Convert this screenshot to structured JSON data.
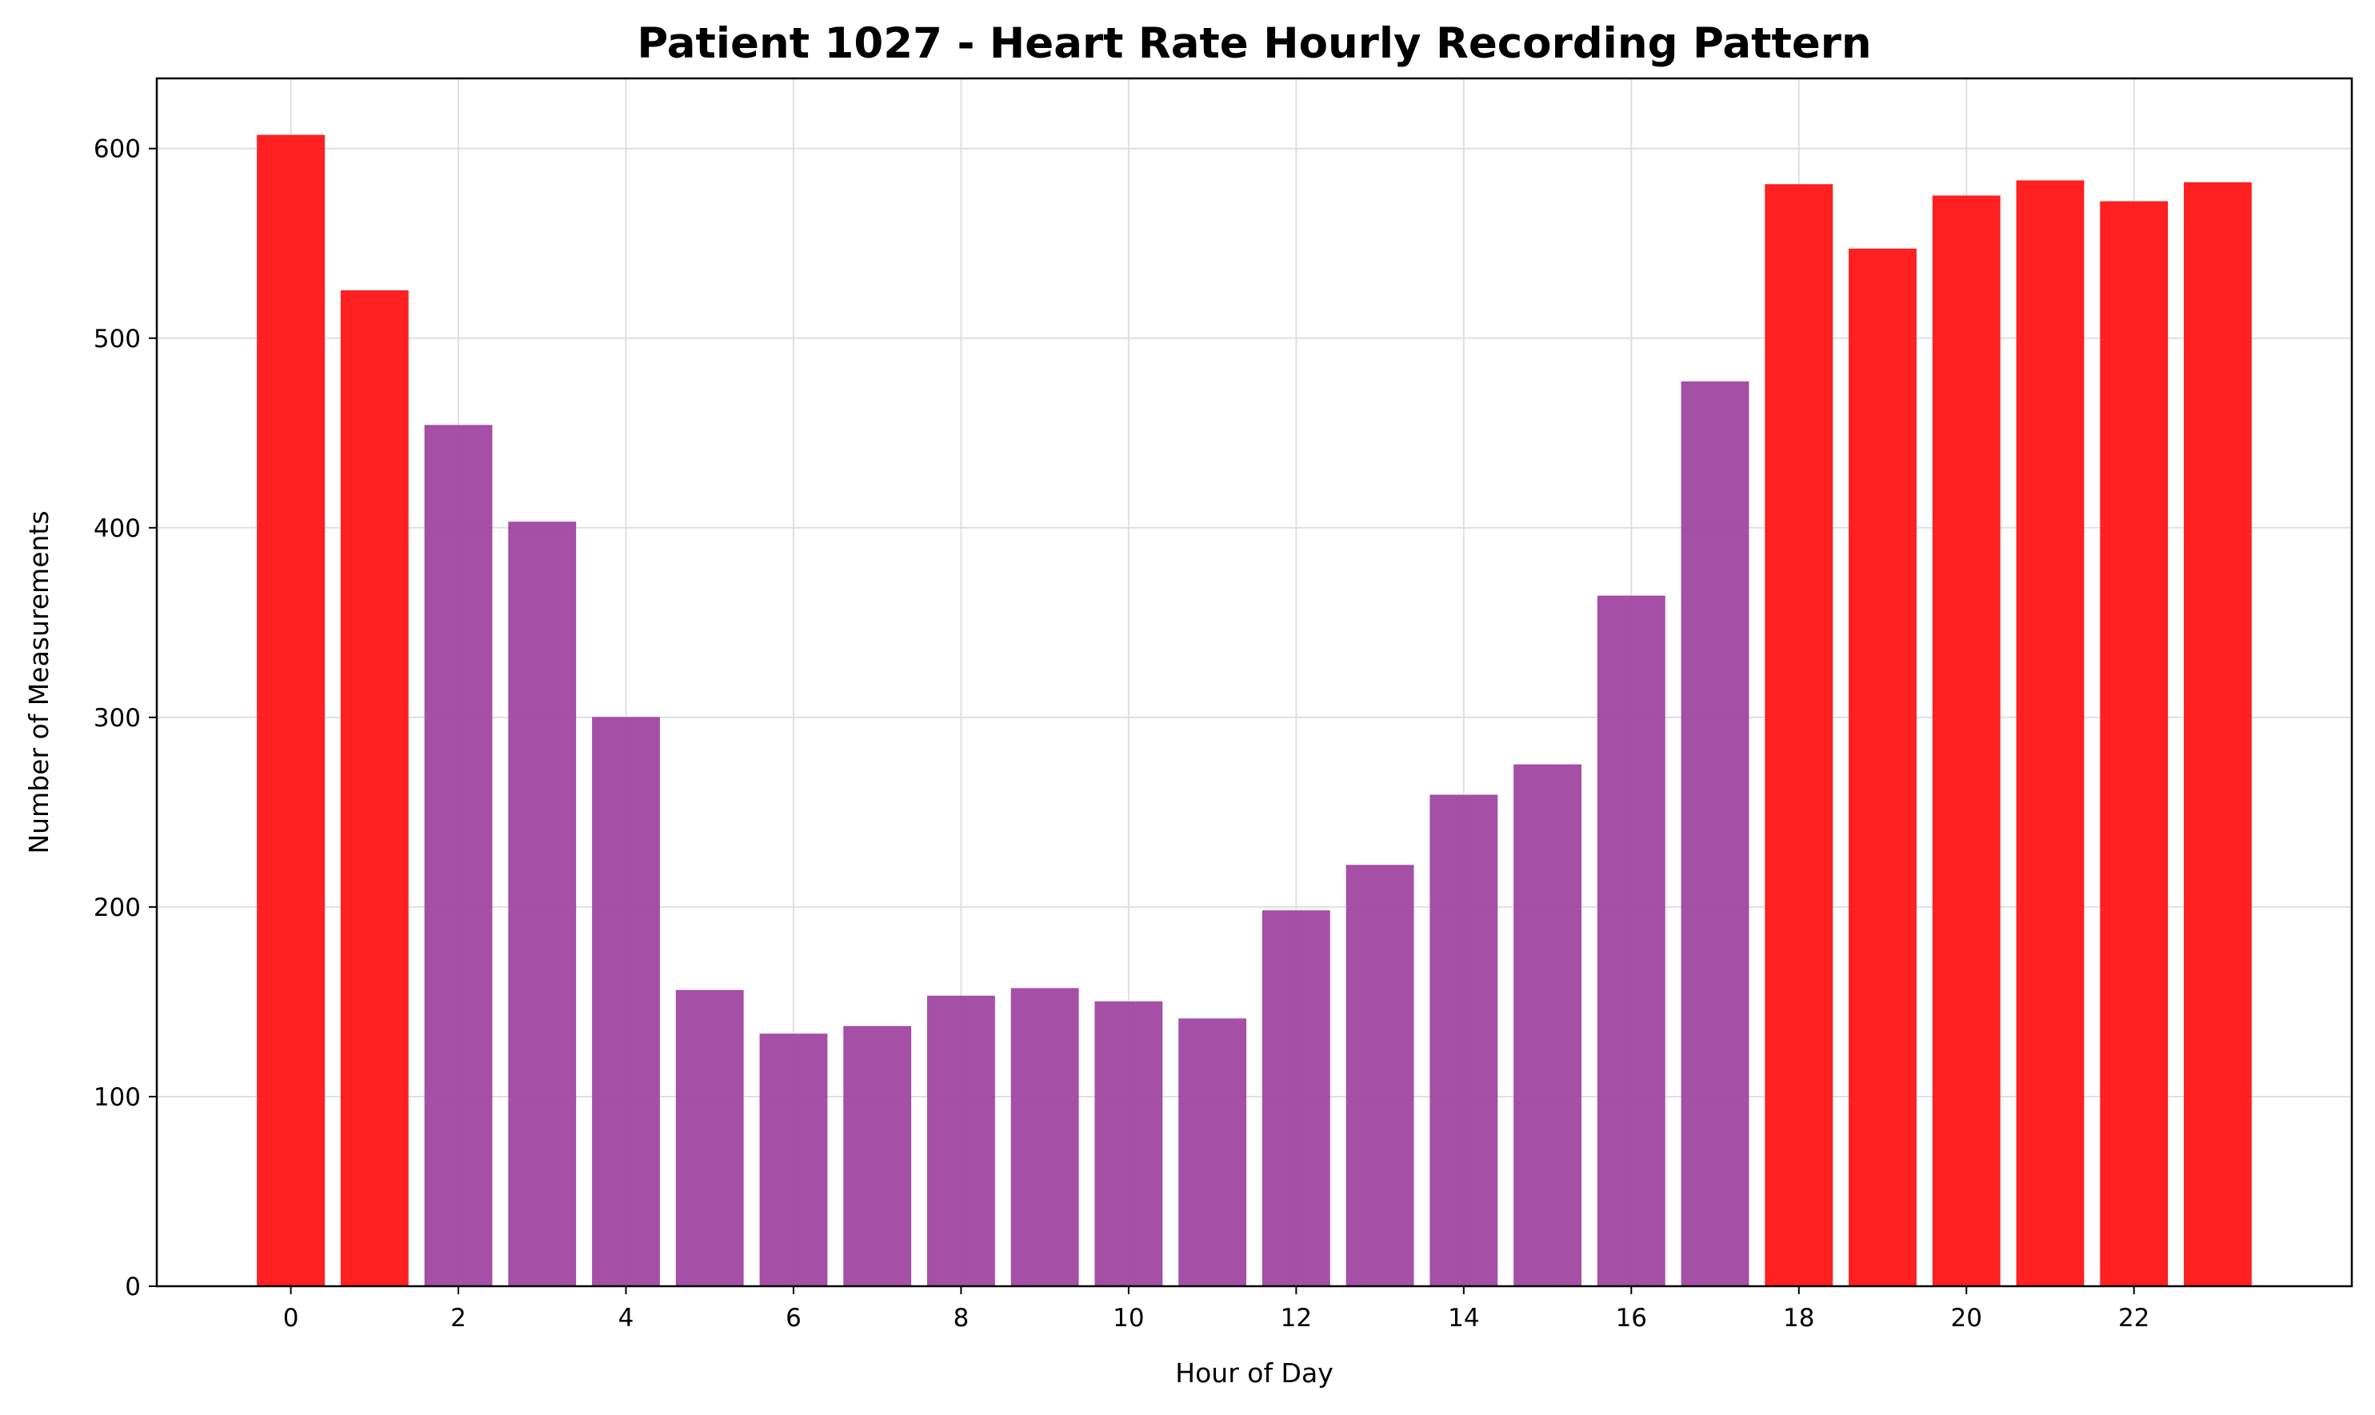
{
  "chart_data": {
    "type": "bar",
    "title": "Patient 1027 - Heart Rate Hourly Recording Pattern",
    "xlabel": "Hour of Day",
    "ylabel": "Number of Measurements",
    "x": [
      0,
      1,
      2,
      3,
      4,
      5,
      6,
      7,
      8,
      9,
      10,
      11,
      12,
      13,
      14,
      15,
      16,
      17,
      18,
      19,
      20,
      21,
      22,
      23
    ],
    "values": [
      607,
      525,
      454,
      403,
      300,
      156,
      133,
      137,
      153,
      157,
      150,
      141,
      198,
      222,
      259,
      275,
      364,
      477,
      581,
      547,
      575,
      583,
      572,
      582
    ],
    "bar_colors": [
      "#ff1a1a",
      "#ff1a1a",
      "#a349a4",
      "#a349a4",
      "#a349a4",
      "#a349a4",
      "#a349a4",
      "#a349a4",
      "#a349a4",
      "#a349a4",
      "#a349a4",
      "#a349a4",
      "#a349a4",
      "#a349a4",
      "#a349a4",
      "#a349a4",
      "#a349a4",
      "#a349a4",
      "#ff1a1a",
      "#ff1a1a",
      "#ff1a1a",
      "#ff1a1a",
      "#ff1a1a",
      "#ff1a1a"
    ],
    "xlim": [
      -1.6,
      24.6
    ],
    "ylim": [
      0,
      637
    ],
    "xticks": [
      0,
      2,
      4,
      6,
      8,
      10,
      12,
      14,
      16,
      18,
      20,
      22
    ],
    "yticks": [
      0,
      100,
      200,
      300,
      400,
      500,
      600
    ],
    "grid": true,
    "colors": {
      "high": "#ff1a1a",
      "normal": "#a349a4",
      "grid": "#e0e0e0",
      "axes": "#000000"
    }
  }
}
